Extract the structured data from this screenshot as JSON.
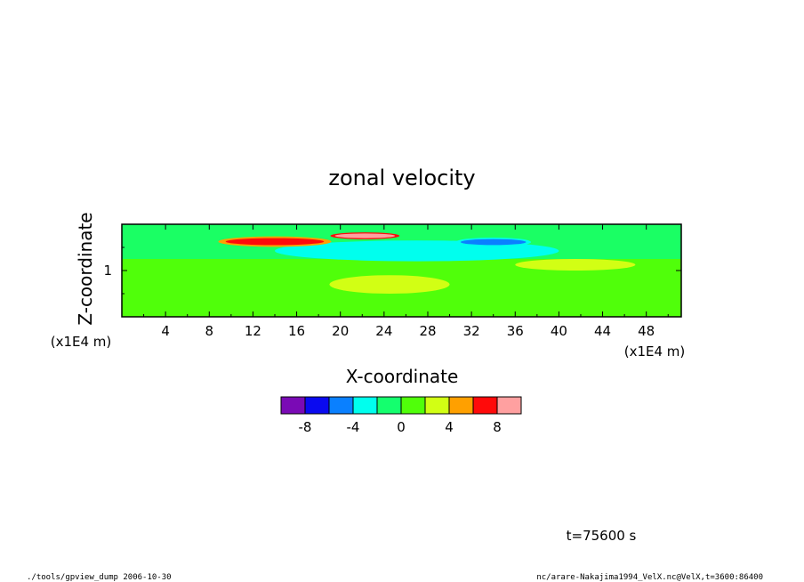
{
  "chart_data": {
    "type": "heatmap",
    "title": "zonal velocity",
    "xlabel": "X-coordinate",
    "ylabel": "Z-coordinate",
    "x_unit": "(x1E4 m)",
    "y_unit": "(x1E4 m)",
    "x_ticks": [
      4,
      8,
      12,
      16,
      20,
      24,
      28,
      32,
      36,
      40,
      44,
      48
    ],
    "y_ticks": [
      1
    ],
    "xlim": [
      0,
      51.2
    ],
    "ylim": [
      0,
      2.0
    ],
    "grid": false,
    "colorbar": {
      "levels": [
        -10,
        -8,
        -6,
        -4,
        -2,
        0,
        2,
        4,
        6,
        8,
        10
      ],
      "tick_labels": [
        "-8",
        "-4",
        "0",
        "4",
        "8"
      ],
      "tick_values": [
        -8,
        -4,
        0,
        4,
        8
      ],
      "colors": [
        "#7a0ab5",
        "#0a0af0",
        "#0a80ff",
        "#00ffee",
        "#14ff6e",
        "#50ff0a",
        "#d2ff14",
        "#ffa000",
        "#ff0a0a",
        "#ffa0a0"
      ]
    },
    "features": [
      {
        "name": "strong-positive-jet-west",
        "x": [
          9.5,
          18.5
        ],
        "z": [
          1.55,
          1.7
        ],
        "value": 7
      },
      {
        "name": "strong-positive-jet-center",
        "x": [
          19.5,
          25.0
        ],
        "z": [
          1.7,
          1.8
        ],
        "value": 9
      },
      {
        "name": "negative-core-east",
        "x": [
          31.0,
          37.0
        ],
        "z": [
          1.55,
          1.68
        ],
        "value": -6
      },
      {
        "name": "negative-band-center",
        "x": [
          14.0,
          40.0
        ],
        "z": [
          1.2,
          1.65
        ],
        "value": -3
      },
      {
        "name": "positive-patch-lower",
        "x": [
          19.0,
          30.0
        ],
        "z": [
          0.5,
          0.9
        ],
        "value": 3
      },
      {
        "name": "positive-patch-east",
        "x": [
          36.0,
          47.0
        ],
        "z": [
          1.0,
          1.25
        ],
        "value": 3
      }
    ]
  },
  "annotations": {
    "time": "t=75600 s",
    "footer_left": "./tools/gpview_dump  2006-10-30",
    "footer_right": "nc/arare-Nakajima1994_VelX.nc@VelX,t=3600:86400"
  }
}
